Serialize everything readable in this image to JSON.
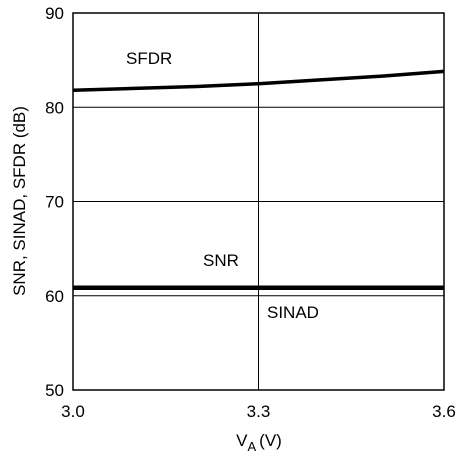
{
  "chart_data": {
    "type": "line",
    "x_ticks": [
      "3.0",
      "3.3",
      "3.6"
    ],
    "y_ticks": [
      "50",
      "60",
      "70",
      "80",
      "90"
    ],
    "xlim": [
      3.0,
      3.6
    ],
    "ylim": [
      50,
      90
    ],
    "grid": true,
    "xlabel": "V",
    "xlabel_sub": "A",
    "xlabel_unit": "(V)",
    "ylabel": "SNR, SINAD, SFDR (dB)",
    "series": [
      {
        "name": "SFDR",
        "x": [
          3.0,
          3.1,
          3.2,
          3.3,
          3.4,
          3.5,
          3.6
        ],
        "values": [
          81.8,
          82.0,
          82.2,
          82.5,
          82.9,
          83.3,
          83.8
        ],
        "color": "#000000"
      },
      {
        "name": "SNR",
        "x": [
          3.0,
          3.3,
          3.6
        ],
        "values": [
          60.9,
          60.9,
          60.9
        ],
        "color": "#000000"
      },
      {
        "name": "SINAD",
        "x": [
          3.0,
          3.3,
          3.6
        ],
        "values": [
          60.8,
          60.8,
          60.8
        ],
        "color": "#000000"
      }
    ]
  }
}
